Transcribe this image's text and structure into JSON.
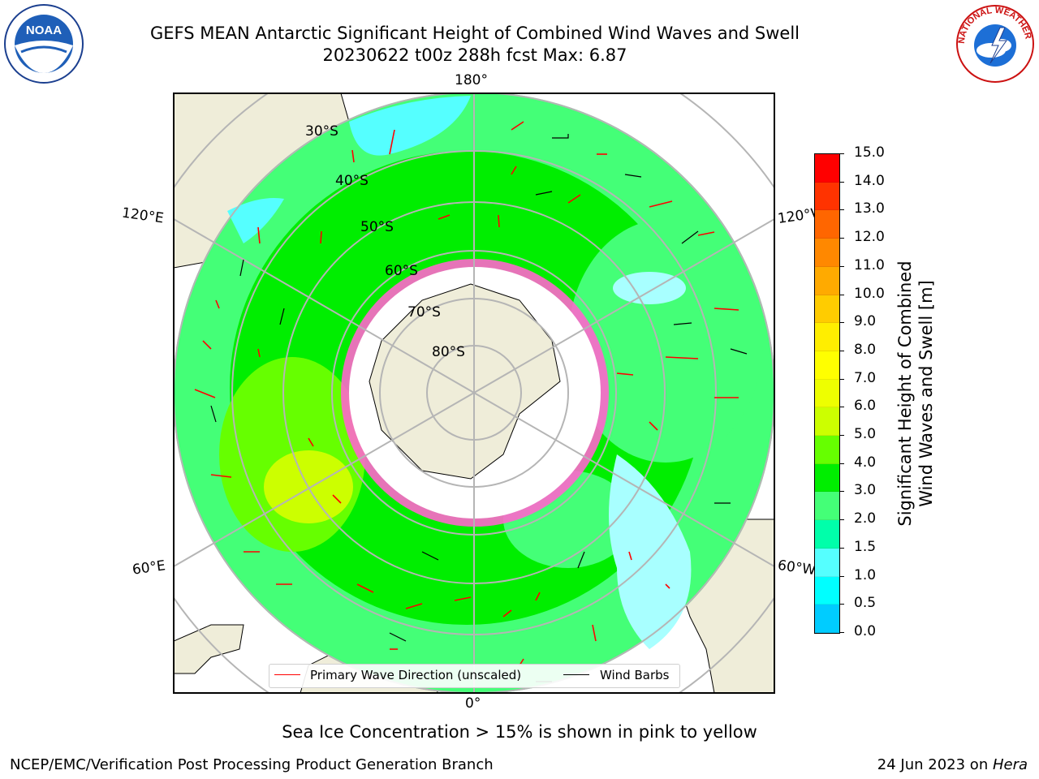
{
  "title": {
    "line1": "GEFS MEAN Antarctic Significant Height of Combined Wind Waves and Swell",
    "line2": "20230622 t00z 288h fcst   Max: 6.87"
  },
  "logos": {
    "left": {
      "text": "NOAA",
      "icon": "noaa-logo"
    },
    "right": {
      "text": "NATIONAL WEATHER SERVICE",
      "icon": "nws-logo"
    }
  },
  "map": {
    "lon_labels": {
      "top": "180°",
      "bottom": "0°",
      "upper_left": "120°E",
      "upper_right": "120°W",
      "lower_left": "60°E",
      "lower_right": "60°W"
    },
    "lat_labels": [
      "30°S",
      "40°S",
      "50°S",
      "60°S",
      "70°S",
      "80°S"
    ],
    "legend": {
      "primary": "Primary Wave Direction (unscaled)",
      "barbs": "Wind Barbs"
    }
  },
  "colorbar": {
    "title_line1": "Significant Height of Combined",
    "title_line2": "Wind Waves and Swell [m]",
    "ticks": [
      "15.0",
      "14.0",
      "13.0",
      "12.0",
      "11.0",
      "10.0",
      "9.0",
      "8.0",
      "7.0",
      "6.0",
      "5.0",
      "4.0",
      "3.0",
      "2.0",
      "1.5",
      "1.0",
      "0.5",
      "0.0"
    ],
    "colors": [
      "#ff0000",
      "#ff3300",
      "#ff6600",
      "#ff8800",
      "#ffaa00",
      "#ffcc00",
      "#ffee00",
      "#ffff00",
      "#eeff00",
      "#ccff00",
      "#66ff00",
      "#00ee00",
      "#44ff77",
      "#00ffaa",
      "#55ffff",
      "#00ffff",
      "#00ccff",
      "#0077ff",
      "#0000ff"
    ]
  },
  "seaice_note": "Sea Ice Concentration > 15% is shown in pink to yellow",
  "footer": {
    "left": "NCEP/EMC/Verification Post Processing Product Generation Branch",
    "right_date": "24 Jun 2023 on ",
    "right_host": "Hera"
  }
}
